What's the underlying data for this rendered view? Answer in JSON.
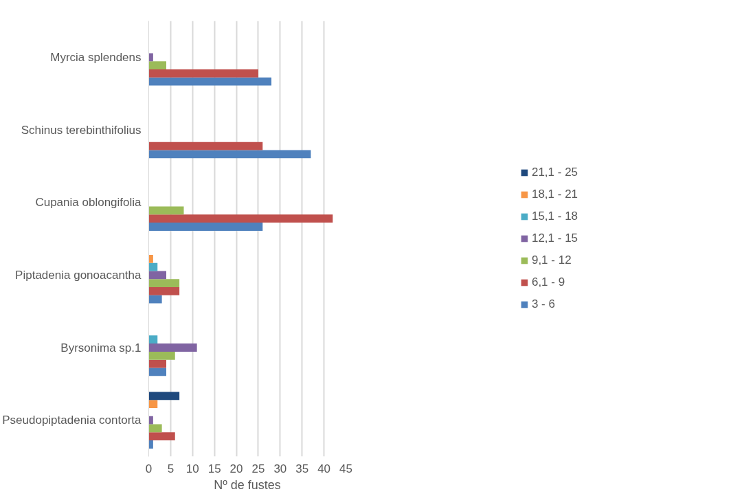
{
  "chart_data": {
    "type": "bar",
    "orientation": "horizontal",
    "xlabel": "Nº de fustes",
    "categories": [
      "Myrcia splendens",
      "Schinus terebinthifolius",
      "Cupania oblongifolia",
      "Piptadenia gonoacantha",
      "Byrsonima sp.1",
      "Pseudopiptadenia contorta"
    ],
    "series": [
      {
        "name": "3 - 6",
        "color": "#4f81bd",
        "values": [
          28,
          37,
          26,
          3,
          4,
          1
        ]
      },
      {
        "name": "6,1 - 9",
        "color": "#c0504d",
        "values": [
          25,
          26,
          42,
          7,
          4,
          6
        ]
      },
      {
        "name": "9,1 - 12",
        "color": "#9bbb59",
        "values": [
          4,
          0,
          8,
          7,
          6,
          3
        ]
      },
      {
        "name": "12,1 - 15",
        "color": "#8064a2",
        "values": [
          1,
          0,
          0,
          4,
          11,
          1
        ]
      },
      {
        "name": "15,1 - 18",
        "color": "#4bacc6",
        "values": [
          0,
          0,
          0,
          2,
          2,
          0
        ]
      },
      {
        "name": "18,1 - 21",
        "color": "#f79646",
        "values": [
          0,
          0,
          0,
          1,
          0,
          2
        ]
      },
      {
        "name": "21,1 - 25",
        "color": "#1f497d",
        "values": [
          0,
          0,
          0,
          0,
          0,
          7
        ]
      }
    ],
    "xlim": [
      0,
      45
    ],
    "xticks": [
      0,
      5,
      10,
      15,
      20,
      25,
      30,
      35,
      40,
      45
    ],
    "grid": "x",
    "legend": "right"
  }
}
